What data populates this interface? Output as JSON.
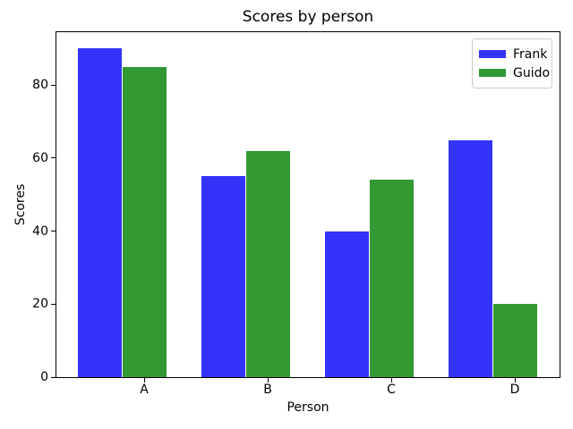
{
  "chart_data": {
    "type": "bar",
    "title": "Scores by person",
    "xlabel": "Person",
    "ylabel": "Scores",
    "categories": [
      "A",
      "B",
      "C",
      "D"
    ],
    "series": [
      {
        "name": "Frank",
        "color": "#3333fa",
        "values": [
          90,
          55,
          40,
          65
        ]
      },
      {
        "name": "Guido",
        "color": "#339933",
        "values": [
          85,
          62,
          54,
          20
        ]
      }
    ],
    "ylim": [
      0,
      94.5
    ],
    "yticks": [
      0,
      20,
      40,
      60,
      80
    ],
    "grid": false,
    "legend": {
      "position": "upper right",
      "entries": [
        "Frank",
        "Guido"
      ]
    },
    "background_color": "#ffffff",
    "spine_color": "#000000"
  }
}
